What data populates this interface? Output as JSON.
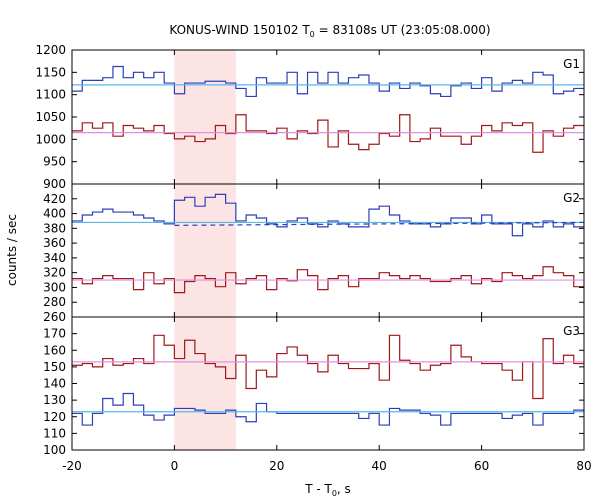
{
  "chart_data": {
    "type": "line",
    "title_prefix": "KONUS-WIND 150102 T",
    "title_sub": "0",
    "title_suffix": " = 83108s UT (23:05:08.000)",
    "ylabel": "counts / sec",
    "xlabel_prefix": "T - T",
    "xlabel_sub": "0",
    "xlabel_suffix": ", s",
    "xlim": [
      -20,
      80
    ],
    "x_ticks": [
      -20,
      0,
      20,
      40,
      60,
      80
    ],
    "x_tick_labels": [
      "-20",
      "0",
      "20",
      "40",
      "60",
      "80"
    ],
    "highlight_interval": [
      0,
      12
    ],
    "highlight_color": "#fde4e4",
    "step_edges": [
      -20,
      -18,
      -16,
      -14,
      -12,
      -10,
      -8,
      -6,
      -4,
      -2,
      0,
      2,
      4,
      6,
      8,
      10,
      12,
      14,
      16,
      18,
      20,
      22,
      24,
      26,
      28,
      30,
      32,
      34,
      36,
      38,
      40,
      42,
      44,
      46,
      48,
      50,
      52,
      54,
      56,
      58,
      60,
      62,
      64,
      66,
      68,
      70,
      72,
      74,
      76,
      78,
      80
    ],
    "panels": [
      {
        "label": "G1",
        "ylim": [
          900,
          1200
        ],
        "y_ticks": [
          900,
          950,
          1000,
          1050,
          1100,
          1150,
          1200
        ],
        "y_tick_labels": [
          "900",
          "950",
          "1000",
          "1050",
          "1100",
          "1150",
          "1200"
        ],
        "series": [
          {
            "color": "#2a3fb8",
            "values": [
              1108,
              1132,
              1132,
              1138,
              1163,
              1138,
              1150,
              1138,
              1150,
              1126,
              1102,
              1126,
              1126,
              1130,
              1130,
              1126,
              1114,
              1096,
              1138,
              1126,
              1126,
              1150,
              1102,
              1150,
              1126,
              1150,
              1126,
              1138,
              1144,
              1126,
              1108,
              1126,
              1114,
              1126,
              1120,
              1102,
              1096,
              1120,
              1126,
              1114,
              1138,
              1108,
              1126,
              1132,
              1126,
              1150,
              1144,
              1102,
              1108,
              1114
            ]
          },
          {
            "color": "#a01818",
            "values": [
              1019,
              1037,
              1025,
              1037,
              1007,
              1031,
              1025,
              1019,
              1031,
              1013,
              1001,
              1007,
              995,
              1001,
              1031,
              1013,
              1055,
              1019,
              1019,
              1013,
              1025,
              1001,
              1019,
              1013,
              1043,
              983,
              1019,
              989,
              977,
              989,
              1013,
              1007,
              1055,
              995,
              1001,
              1025,
              1007,
              1007,
              989,
              1007,
              1031,
              1019,
              1037,
              1031,
              1037,
              971,
              1019,
              1007,
              1025,
              1031
            ]
          },
          {
            "color": "#55b8e8",
            "values": [
              1122,
              1122
            ]
          },
          {
            "color": "#e090e0",
            "values": [
              1015,
              1015
            ]
          }
        ],
        "ref_x": [
          -20,
          80
        ]
      },
      {
        "label": "G2",
        "ylim": [
          260,
          440
        ],
        "y_ticks": [
          260,
          280,
          300,
          320,
          340,
          360,
          380,
          400,
          420
        ],
        "y_tick_labels": [
          "260",
          "280",
          "300",
          "320",
          "340",
          "360",
          "380",
          "400",
          "420"
        ],
        "series": [
          {
            "color": "#2a3fb8",
            "values": [
              390,
              398,
              402,
              406,
              402,
              402,
              398,
              394,
              390,
              386,
              418,
              422,
              410,
              422,
              426,
              414,
              390,
              398,
              394,
              386,
              382,
              390,
              394,
              386,
              382,
              390,
              386,
              382,
              382,
              406,
              410,
              398,
              390,
              386,
              386,
              382,
              386,
              394,
              394,
              386,
              398,
              386,
              386,
              370,
              386,
              382,
              390,
              382,
              386,
              382
            ]
          },
          {
            "color": "#a01818",
            "values": [
              312,
              305,
              312,
              316,
              312,
              312,
              297,
              320,
              305,
              312,
              293,
              308,
              316,
              312,
              301,
              320,
              305,
              312,
              316,
              297,
              312,
              309,
              324,
              316,
              297,
              312,
              316,
              301,
              312,
              312,
              320,
              316,
              312,
              316,
              312,
              308,
              308,
              312,
              316,
              305,
              312,
              308,
              320,
              316,
              312,
              316,
              328,
              320,
              316,
              301
            ]
          },
          {
            "color": "#55b8e8",
            "values": [
              388,
              388
            ]
          },
          {
            "color": "#e090e0",
            "values": [
              310,
              310
            ]
          }
        ],
        "ref_x": [
          -20,
          80
        ],
        "dashed": {
          "color": "#2a3fb8",
          "x": [
            0,
            80
          ],
          "y": [
            384,
            388
          ]
        }
      },
      {
        "label": "G3",
        "ylim": [
          100,
          180
        ],
        "y_ticks": [
          100,
          110,
          120,
          130,
          140,
          150,
          160,
          170
        ],
        "y_tick_labels": [
          "100",
          "110",
          "120",
          "130",
          "140",
          "150",
          "160",
          "170"
        ],
        "series": [
          {
            "color": "#2a3fb8",
            "values": [
              122,
              115,
              122,
              131,
              127,
              134,
              127,
              121,
              118,
              121,
              125,
              125,
              124,
              122,
              122,
              124,
              120,
              117,
              128,
              123,
              122,
              122,
              122,
              122,
              122,
              122,
              122,
              122,
              119,
              122,
              115,
              125,
              124,
              124,
              122,
              121,
              115,
              122,
              122,
              122,
              122,
              122,
              119,
              121,
              122,
              115,
              122,
              122,
              122,
              124
            ]
          },
          {
            "color": "#a01818",
            "values": [
              151,
              152,
              150,
              155,
              151,
              152,
              155,
              152,
              169,
              163,
              155,
              166,
              158,
              152,
              150,
              143,
              157,
              137,
              148,
              144,
              158,
              162,
              157,
              152,
              147,
              157,
              152,
              149,
              149,
              152,
              142,
              169,
              154,
              152,
              148,
              151,
              152,
              163,
              156,
              153,
              152,
              152,
              148,
              142,
              153,
              131,
              167,
              152,
              157,
              152
            ]
          },
          {
            "color": "#55b8e8",
            "values": [
              123,
              123
            ]
          },
          {
            "color": "#e090e0",
            "values": [
              153,
              153
            ]
          }
        ],
        "ref_x": [
          -20,
          80
        ]
      }
    ]
  }
}
